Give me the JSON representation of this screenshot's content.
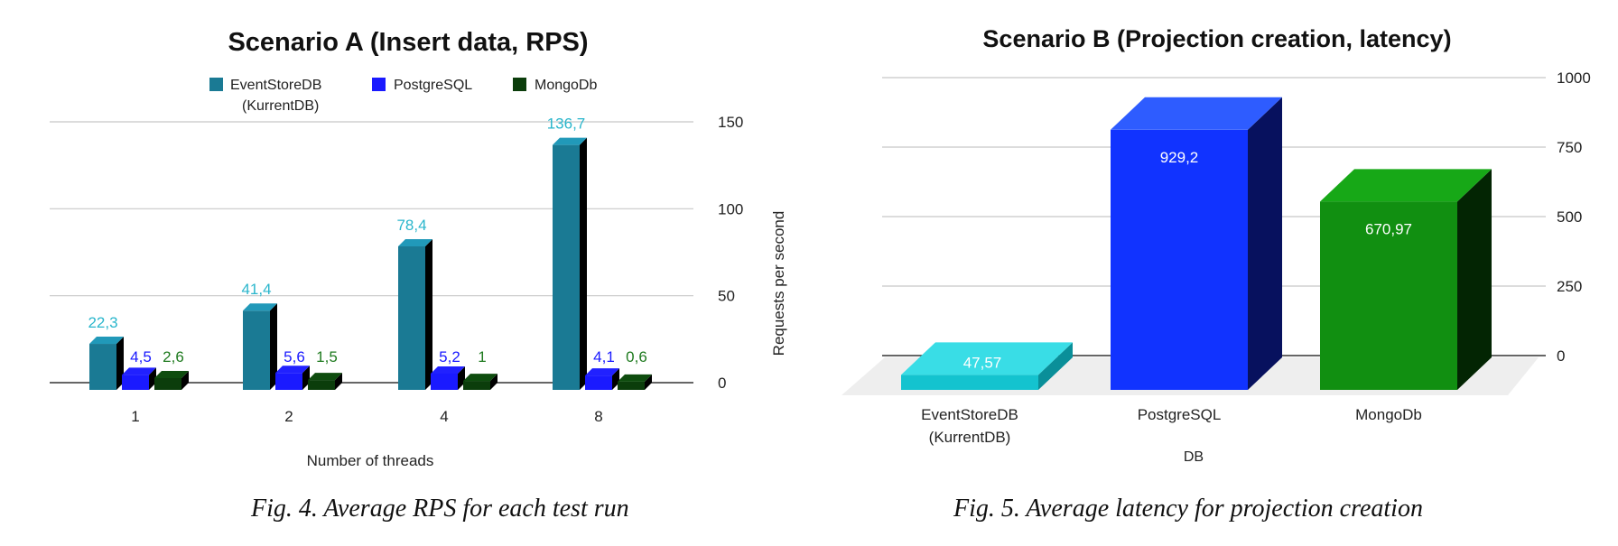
{
  "chart_data": [
    {
      "type": "bar",
      "title": "Scenario A (Insert data, RPS)",
      "xlabel": "Number of threads",
      "ylabel": "Requests per second",
      "categories": [
        "1",
        "2",
        "4",
        "8"
      ],
      "ylim": [
        0,
        150
      ],
      "yticks": [
        "0",
        "50",
        "100",
        "150"
      ],
      "legend_position": "top",
      "grid": true,
      "series": [
        {
          "name": "EventStoreDB",
          "name_line2": "(KurrentDB)",
          "color": "#1a7a94",
          "label_color": "#2ab6cc",
          "values": [
            22.3,
            41.4,
            78.4,
            136.7
          ],
          "labels": [
            "22,3",
            "41,4",
            "78,4",
            "136,7"
          ]
        },
        {
          "name": "PostgreSQL",
          "color": "#1a1aff",
          "label_color": "#1a1aff",
          "values": [
            4.5,
            5.6,
            5.2,
            4.1
          ],
          "labels": [
            "4,5",
            "5,6",
            "5,2",
            "4,1"
          ]
        },
        {
          "name": "MongoDb",
          "color": "#0b3d0b",
          "label_color": "#1e7a1e",
          "values": [
            2.6,
            1.5,
            1,
            0.6
          ],
          "labels": [
            "2,6",
            "1,5",
            "1",
            "0,6"
          ]
        }
      ]
    },
    {
      "type": "bar",
      "title": "Scenario B (Projection creation, latency)",
      "xlabel": "DB",
      "ylabel": "",
      "categories": [
        "EventStoreDB",
        "PostgreSQL",
        "MongoDb"
      ],
      "category_line2": [
        "(KurrentDB)",
        "",
        ""
      ],
      "ylim": [
        0,
        1000
      ],
      "yticks": [
        "0",
        "250",
        "500",
        "750",
        "1000"
      ],
      "grid": true,
      "values": [
        47.57,
        929.2,
        670.97
      ],
      "labels": [
        "47,57",
        "929,2",
        "670,97"
      ],
      "colors": [
        {
          "front": "#14c3cf",
          "top": "#39dde6",
          "side": "#0a8f99"
        },
        {
          "front": "#1133ff",
          "top": "#2e5cff",
          "side": "#07115e"
        },
        {
          "front": "#118f11",
          "top": "#17a817",
          "side": "#032503"
        }
      ]
    }
  ],
  "captions": {
    "fig4": "Fig. 4. Average RPS for each test run",
    "fig5": "Fig. 5. Average latency for projection creation"
  }
}
